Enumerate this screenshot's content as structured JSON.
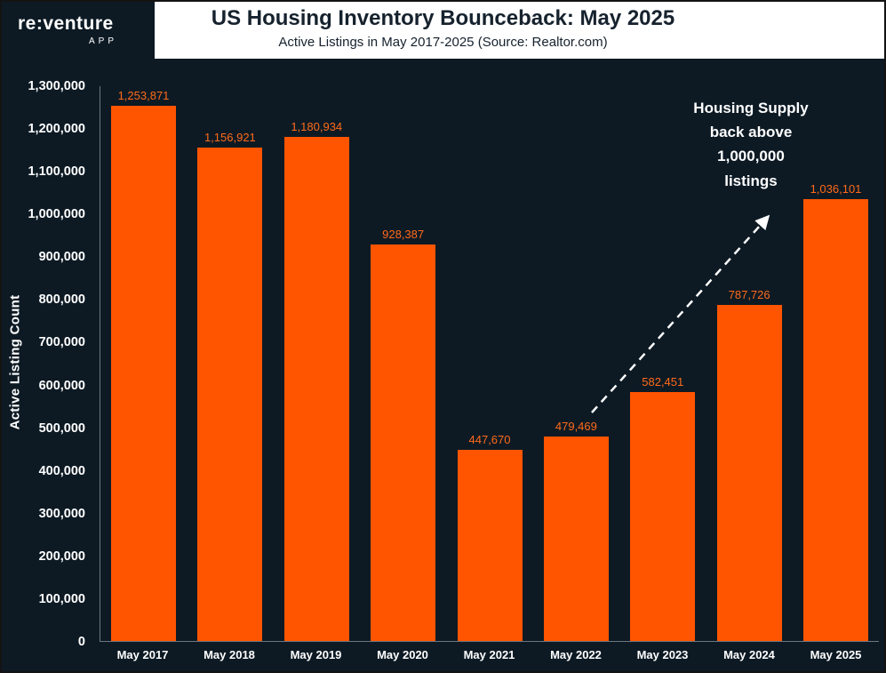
{
  "logo": {
    "brand": "re:venture",
    "sub": "APP"
  },
  "header": {
    "title": "US Housing Inventory Bounceback: May 2025",
    "subtitle": "Active Listings in May 2017-2025 (Source: Realtor.com)"
  },
  "chart_data": {
    "type": "bar",
    "title": "US Housing Inventory Bounceback: May 2025",
    "subtitle": "Active Listings in May 2017-2025 (Source: Realtor.com)",
    "categories": [
      "May 2017",
      "May 2018",
      "May 2019",
      "May 2020",
      "May 2021",
      "May 2022",
      "May 2023",
      "May 2024",
      "May 2025"
    ],
    "values": [
      1253871,
      1156921,
      1180934,
      928387,
      447670,
      479469,
      582451,
      787726,
      1036101
    ],
    "value_labels": [
      "1,253,871",
      "1,156,921",
      "1,180,934",
      "928,387",
      "447,670",
      "479,469",
      "582,451",
      "787,726",
      "1,036,101"
    ],
    "xlabel": "",
    "ylabel": "Active Listing Count",
    "ylim": [
      0,
      1300000
    ],
    "ytick_step": 100000,
    "yticks": [
      "1,300,000",
      "1,200,000",
      "1,100,000",
      "1,000,000",
      "900,000",
      "800,000",
      "700,000",
      "600,000",
      "500,000",
      "400,000",
      "300,000",
      "200,000",
      "100,000",
      "0"
    ],
    "grid": false,
    "legend": false,
    "annotation": {
      "lines": [
        "Housing Supply",
        "back above",
        "1,000,000",
        "listings"
      ]
    },
    "colors": {
      "bar": "#ff5500",
      "bar_value_label": "#ff6a1a",
      "background": "#0d1a24",
      "header_background": "#ffffff",
      "header_text": "#16222e",
      "axis_text": "#ffffff",
      "annotation_text": "#ffffff",
      "arrow": "#ffffff"
    }
  }
}
